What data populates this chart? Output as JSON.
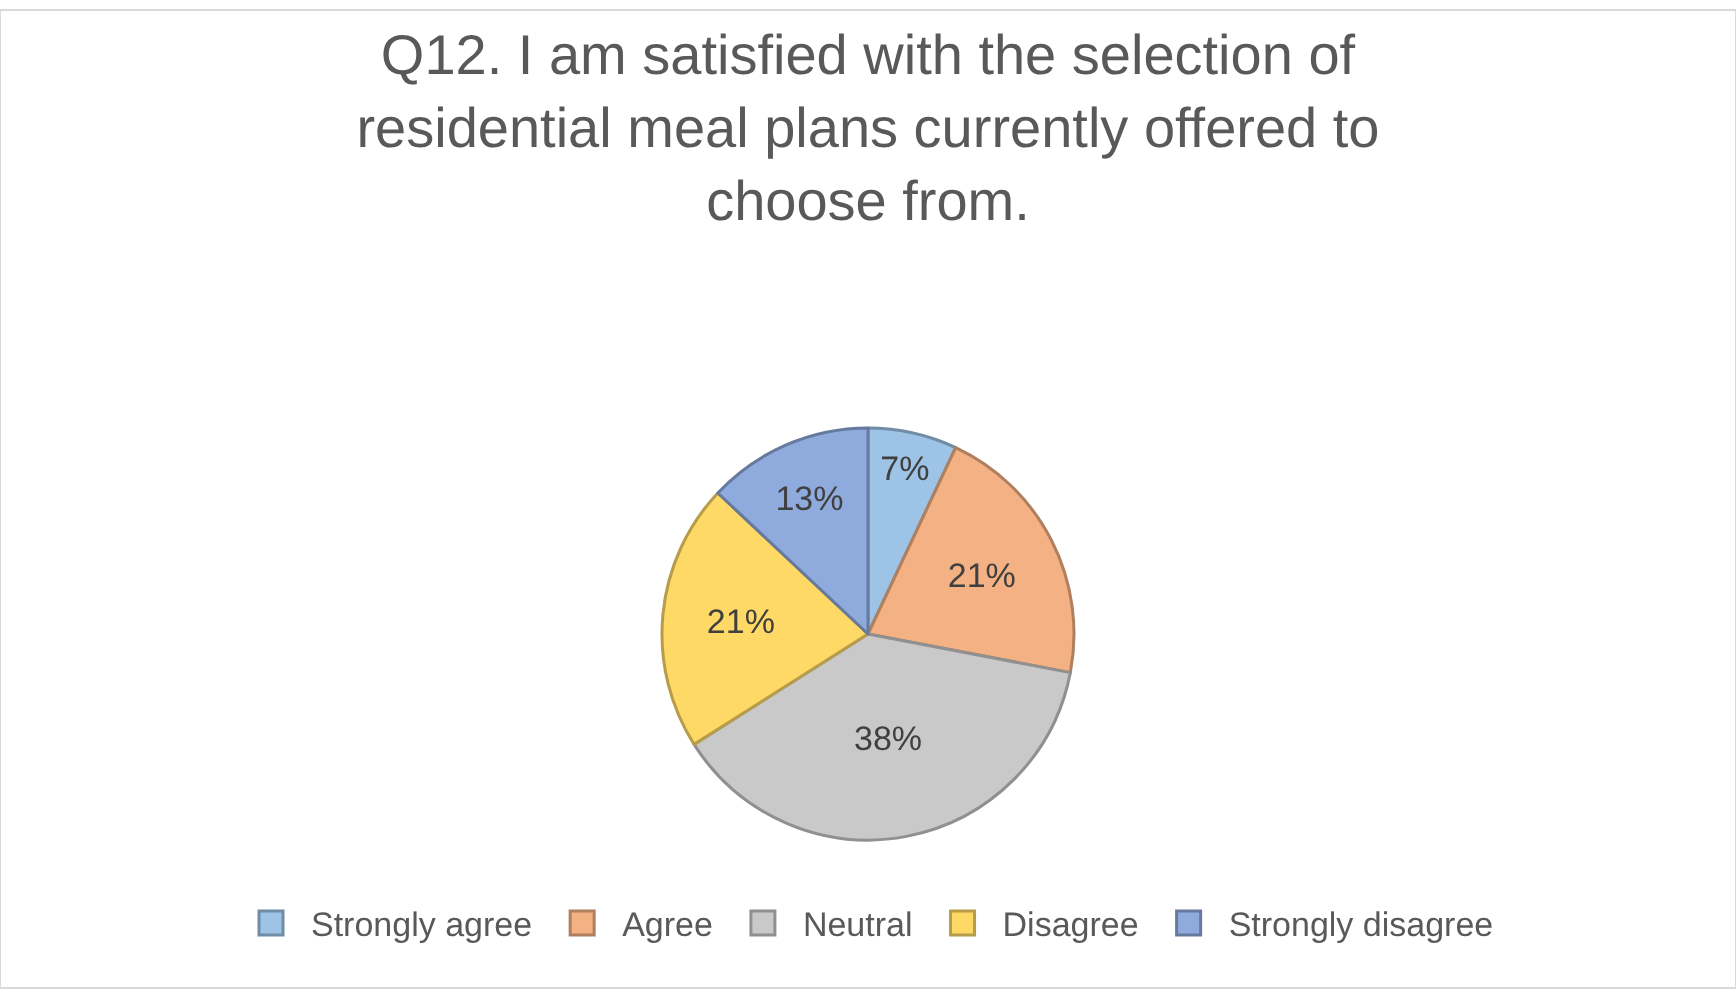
{
  "chart_data": {
    "type": "pie",
    "title": "Q12. I am satisfied with the selection of residential meal plans currently offered to choose from.",
    "categories": [
      "Strongly agree",
      "Agree",
      "Neutral",
      "Disagree",
      "Strongly disagree"
    ],
    "values": [
      7,
      21,
      38,
      21,
      13
    ],
    "value_labels": [
      "7%",
      "21%",
      "38%",
      "21%",
      "13%"
    ],
    "colors": [
      "#9dc3e6",
      "#f4b183",
      "#c9c9c9",
      "#ffd966",
      "#8faadc"
    ],
    "legend": "bottom"
  }
}
